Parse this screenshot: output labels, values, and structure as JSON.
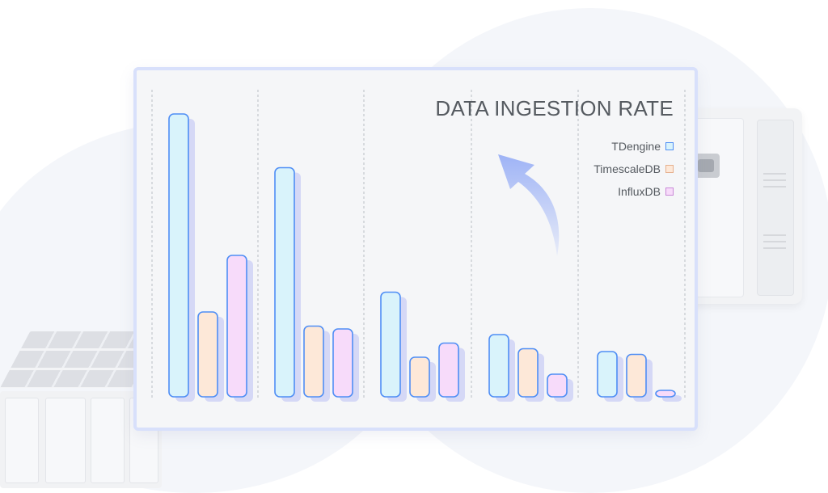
{
  "chart_data": {
    "type": "bar",
    "title": "DATA INGESTION RATE",
    "categories": [
      "",
      "",
      "",
      "",
      ""
    ],
    "series": [
      {
        "name": "TDengine",
        "values": [
          100,
          81,
          37,
          22,
          16
        ],
        "fill": "#d9f3fb",
        "stroke": "#4f8ef5"
      },
      {
        "name": "TimescaleDB",
        "values": [
          30,
          25,
          14,
          17,
          15
        ],
        "fill": "#fde8d8",
        "stroke": "#4f8ef5"
      },
      {
        "name": "InfluxDB",
        "values": [
          50,
          24,
          19,
          8,
          2
        ],
        "fill": "#f7dbfa",
        "stroke": "#4f8ef5"
      }
    ],
    "ylim": [
      0,
      100
    ],
    "grid": false,
    "legend_position": "top-right",
    "xlabel": "",
    "ylabel": ""
  },
  "colors": {
    "bar_outline": "#4f8ef5",
    "bar_shadow": "#d5d8f6",
    "divider": "#b9bdc4",
    "arrow": "#9eb3f6",
    "frame": "#d8e0fb"
  },
  "icons": {
    "trend_arrow": "up-arrow-icon"
  }
}
